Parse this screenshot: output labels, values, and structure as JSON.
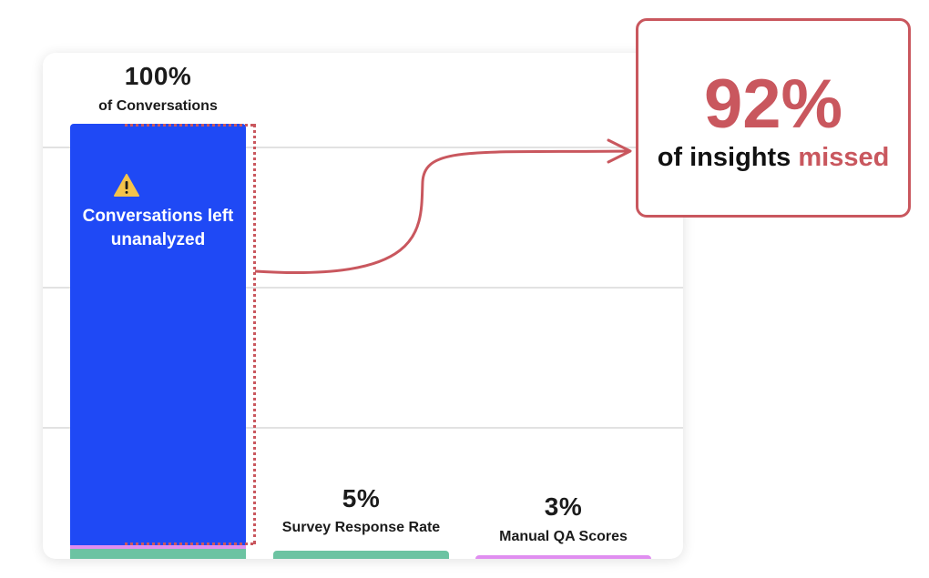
{
  "chart_data": {
    "type": "bar",
    "categories": [
      "Conversations",
      "Survey Response Rate",
      "Manual QA Scores"
    ],
    "values": [
      100,
      5,
      3
    ],
    "value_labels": [
      "100%",
      "5%",
      "3%"
    ],
    "sublabels": [
      "of Conversations",
      "Survey Response Rate",
      "Manual QA Scores"
    ],
    "colors": [
      "#1f49f5",
      "#6cc3a2",
      "#e08ef0"
    ],
    "bar_annotation": "Conversations left unanalyzed",
    "bar_annotation_icon": "warning-icon",
    "ylim": [
      0,
      100
    ],
    "grid": true
  },
  "callout": {
    "value": "92%",
    "text_prefix": "of insights",
    "text_highlight": "missed",
    "accent": "#c9575e"
  }
}
